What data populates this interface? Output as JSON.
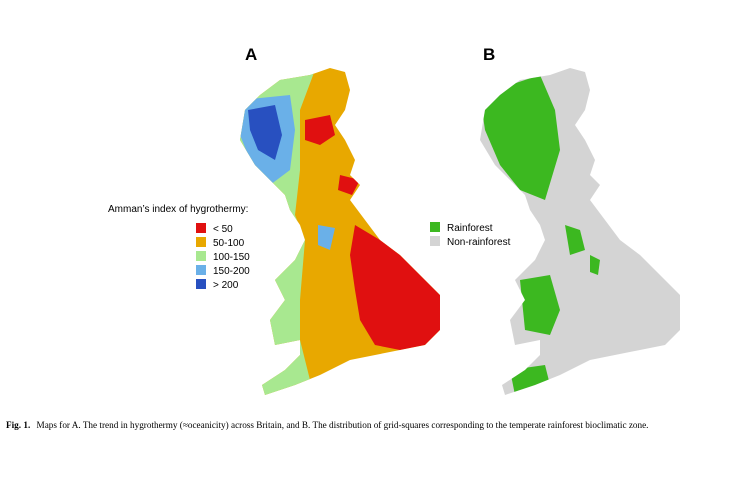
{
  "panels": [
    {
      "label": "A"
    },
    {
      "label": "B"
    }
  ],
  "legend_a": {
    "title": "Amman’s index of hygrothermy:",
    "items": [
      "< 50",
      "50-100",
      "100-150",
      "150-200",
      "> 200"
    ]
  },
  "legend_b": {
    "items": [
      "Rainforest",
      "Non-rainforest"
    ]
  },
  "caption": {
    "label": "Fig. 1.",
    "text": "Maps for A. The trend in hygrothermy (≈oceanicity) across Britain, and B. The distribution of grid-squares corresponding to the temperate rainforest bioclimatic zone."
  }
}
